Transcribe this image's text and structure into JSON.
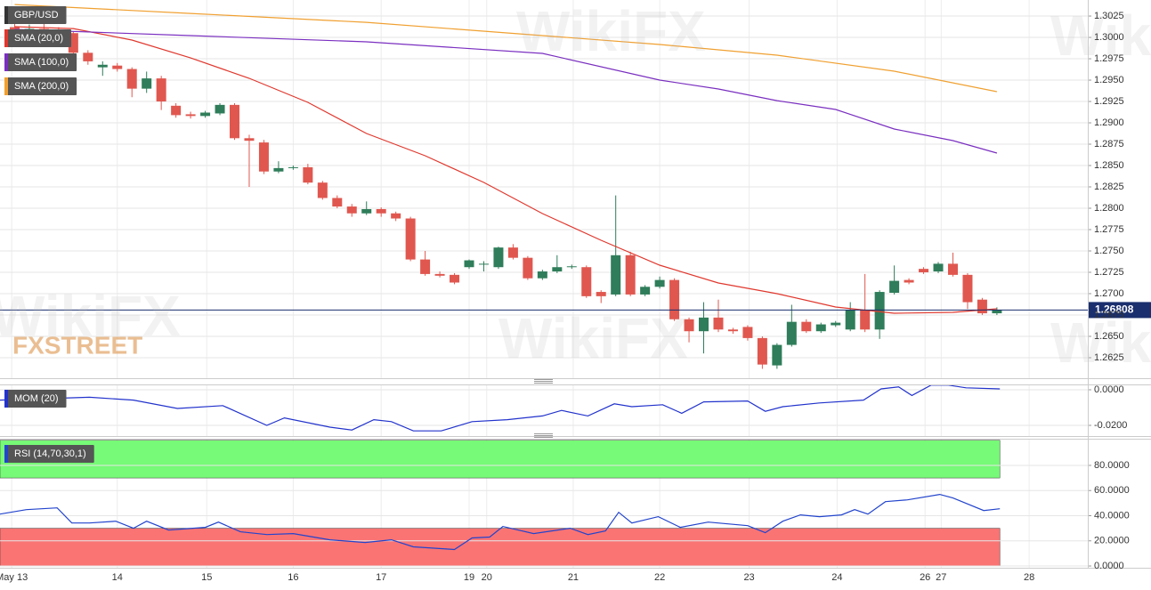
{
  "watermark": "WikiFX",
  "logo": "FXSTREET",
  "chart_data": [
    {
      "type": "candlestick",
      "title": "GBP/USD",
      "x": [
        0,
        1,
        2,
        3,
        4,
        5,
        6,
        7,
        8,
        9,
        10,
        11,
        12,
        13,
        14,
        15,
        16,
        17,
        18,
        19,
        20,
        21,
        22,
        23,
        24,
        25,
        26,
        27,
        28,
        29,
        30,
        31,
        32,
        33,
        34,
        35,
        36,
        37,
        38,
        39,
        40,
        41,
        42,
        43,
        44,
        45,
        46,
        47,
        48,
        49,
        50,
        51,
        52,
        53,
        54,
        55,
        56,
        57,
        58,
        59,
        60,
        61,
        62,
        63,
        64,
        65,
        66,
        67
      ],
      "open": [
        1.3012,
        1.3005,
        1.301,
        1.3008,
        1.3005,
        1.2982,
        1.2965,
        1.2967,
        1.2963,
        1.294,
        1.2952,
        1.292,
        1.291,
        1.2908,
        1.2911,
        1.2921,
        1.2882,
        1.2877,
        1.2843,
        1.2847,
        1.2848,
        1.283,
        1.2812,
        1.2802,
        1.2794,
        1.2799,
        1.2794,
        1.2788,
        1.274,
        1.2723,
        1.2722,
        1.2731,
        1.2734,
        1.2731,
        1.2754,
        1.2742,
        1.2718,
        1.2726,
        1.2731,
        1.2731,
        1.2702,
        1.2699,
        1.2745,
        1.2699,
        1.2708,
        1.2716,
        1.267,
        1.2656,
        1.2672,
        1.2658,
        1.2661,
        1.2648,
        1.2616,
        1.264,
        1.2667,
        1.2656,
        1.2663,
        1.2658,
        1.2681,
        1.2658,
        1.2701,
        1.2716,
        1.2729,
        1.2726,
        1.2735,
        1.2722,
        1.2693,
        1.2677
      ],
      "high": [
        1.3018,
        1.3015,
        1.302,
        1.3012,
        1.3007,
        1.2985,
        1.2972,
        1.297,
        1.2965,
        1.296,
        1.2955,
        1.2923,
        1.2913,
        1.2914,
        1.2923,
        1.2923,
        1.2886,
        1.288,
        1.2855,
        1.285,
        1.2852,
        1.2832,
        1.2815,
        1.2805,
        1.2808,
        1.2801,
        1.2796,
        1.279,
        1.275,
        1.2726,
        1.2724,
        1.274,
        1.2738,
        1.2755,
        1.2758,
        1.2744,
        1.2728,
        1.2745,
        1.2734,
        1.2733,
        1.2704,
        1.2815,
        1.2749,
        1.271,
        1.272,
        1.2718,
        1.2672,
        1.269,
        1.2693,
        1.266,
        1.2663,
        1.265,
        1.2642,
        1.2687,
        1.267,
        1.2666,
        1.2668,
        1.269,
        1.2723,
        1.2704,
        1.2733,
        1.2718,
        1.2731,
        1.2737,
        1.2748,
        1.2724,
        1.2695,
        1.2684
      ],
      "low": [
        1.3,
        1.2998,
        1.3002,
        1.2995,
        1.2975,
        1.2968,
        1.2955,
        1.296,
        1.293,
        1.2935,
        1.2915,
        1.2906,
        1.2905,
        1.2906,
        1.2909,
        1.288,
        1.2825,
        1.284,
        1.2841,
        1.2845,
        1.2828,
        1.281,
        1.28,
        1.279,
        1.2792,
        1.279,
        1.2785,
        1.2738,
        1.2721,
        1.2719,
        1.2711,
        1.2729,
        1.2726,
        1.2729,
        1.274,
        1.2716,
        1.2716,
        1.2724,
        1.2729,
        1.2695,
        1.2689,
        1.2697,
        1.2697,
        1.2697,
        1.2706,
        1.2668,
        1.2643,
        1.263,
        1.2655,
        1.2653,
        1.2645,
        1.2612,
        1.2612,
        1.2638,
        1.2654,
        1.2654,
        1.2661,
        1.2656,
        1.2655,
        1.2647,
        1.2699,
        1.2711,
        1.2723,
        1.2724,
        1.272,
        1.2682,
        1.2675,
        1.2675
      ],
      "close": [
        1.3005,
        1.301,
        1.3008,
        1.3005,
        1.2982,
        1.2972,
        1.2968,
        1.2963,
        1.294,
        1.2952,
        1.2925,
        1.2909,
        1.2908,
        1.2912,
        1.2921,
        1.2882,
        1.2879,
        1.2843,
        1.2847,
        1.2848,
        1.283,
        1.2812,
        1.2802,
        1.2794,
        1.2799,
        1.2794,
        1.2788,
        1.274,
        1.2723,
        1.2721,
        1.2713,
        1.2739,
        1.2735,
        1.2754,
        1.2742,
        1.2718,
        1.2726,
        1.2731,
        1.2732,
        1.2697,
        1.2697,
        1.2745,
        1.2699,
        1.2708,
        1.2716,
        1.267,
        1.2656,
        1.2672,
        1.2658,
        1.2656,
        1.2648,
        1.2617,
        1.264,
        1.2667,
        1.2656,
        1.2664,
        1.2666,
        1.2681,
        1.2658,
        1.2702,
        1.2715,
        1.2713,
        1.2725,
        1.2735,
        1.2722,
        1.269,
        1.2677,
        1.2681
      ],
      "up_color": "#2f7d5a",
      "down_color": "#e0574f",
      "series": [
        {
          "name": "SMA (20,0)",
          "color": "#e0382e",
          "x": [
            0,
            4,
            8,
            12,
            16,
            20,
            24,
            28,
            32,
            36,
            40,
            44,
            48,
            52,
            56,
            60,
            64,
            67
          ],
          "values": [
            1.30125,
            1.30104,
            1.29969,
            1.2976,
            1.29521,
            1.2924,
            1.28875,
            1.28615,
            1.28302,
            1.27938,
            1.27625,
            1.27333,
            1.27125,
            1.27,
            1.26844,
            1.26771,
            1.26781,
            1.26823
          ]
        },
        {
          "name": "SMA (100,0)",
          "color": "#7a2fc0",
          "x": [
            0,
            12,
            24,
            36,
            44,
            48,
            52,
            56,
            60,
            64,
            67
          ],
          "values": [
            1.30094,
            1.30021,
            1.29948,
            1.29813,
            1.295,
            1.29396,
            1.2926,
            1.29156,
            1.28927,
            1.28792,
            1.28646
          ]
        },
        {
          "name": "SMA (200,0)",
          "color": "#f0a030",
          "x": [
            0,
            12,
            24,
            36,
            44,
            52,
            60,
            67
          ],
          "values": [
            1.30385,
            1.30281,
            1.30177,
            1.30021,
            1.29917,
            1.29792,
            1.29604,
            1.29365
          ]
        }
      ],
      "last_price": 1.26808,
      "last_price_color": "#1a2f6e",
      "xlim": [
        -1,
        73.2
      ],
      "xticks": [
        {
          "value": -0.2,
          "label": "May 13"
        },
        {
          "value": 7,
          "label": "14"
        },
        {
          "value": 13.1,
          "label": "15"
        },
        {
          "value": 19,
          "label": "16"
        },
        {
          "value": 25,
          "label": "17"
        },
        {
          "value": 31,
          "label": "19"
        },
        {
          "value": 32.2,
          "label": "20"
        },
        {
          "value": 38.1,
          "label": "21"
        },
        {
          "value": 44,
          "label": "22"
        },
        {
          "value": 50.1,
          "label": "23"
        },
        {
          "value": 56.1,
          "label": "24"
        },
        {
          "value": 62.1,
          "label": "26"
        },
        {
          "value": 63.2,
          "label": "27"
        },
        {
          "value": 69.2,
          "label": "28"
        }
      ],
      "ylim": [
        1.2601,
        1.30438
      ],
      "yticks": [
        1.2625,
        {
          "value": 1.265,
          "label": "1.2650"
        },
        1.2675,
        {
          "value": 1.27,
          "label": "1.2700"
        },
        1.2725,
        {
          "value": 1.275,
          "label": "1.2750"
        },
        1.2775,
        {
          "value": 1.28,
          "label": "1.2800"
        },
        1.2825,
        {
          "value": 1.285,
          "label": "1.2850"
        },
        1.2875,
        {
          "value": 1.29,
          "label": "1.2900"
        },
        1.2925,
        {
          "value": 1.295,
          "label": "1.2950"
        },
        1.2975,
        {
          "value": 1.3,
          "label": "1.3000"
        },
        1.3025
      ],
      "grid": true
    },
    {
      "type": "line",
      "series": [
        {
          "name": "MOM (20)",
          "color": "#2233cc",
          "x": [
            -1.0,
            5.1,
            8.1,
            11.1,
            14.2,
            17.2,
            18.4,
            21.5,
            23.0,
            24.5,
            25.7,
            27.2,
            29.1,
            31.2,
            33.6,
            36.0,
            37.3,
            39.1,
            40.9,
            42.1,
            44.2,
            45.5,
            47.0,
            50.0,
            51.2,
            52.4,
            54.9,
            57.9,
            59.1,
            60.3,
            61.2,
            62.5,
            63.7,
            64.9,
            67.2
          ],
          "values": [
            -0.0058,
            -0.0042,
            -0.0058,
            -0.0105,
            -0.0089,
            -0.02,
            -0.0158,
            -0.021,
            -0.0226,
            -0.0168,
            -0.0179,
            -0.0231,
            -0.0231,
            -0.0179,
            -0.0168,
            -0.0147,
            -0.0116,
            -0.0147,
            -0.0079,
            -0.0095,
            -0.0084,
            -0.0132,
            -0.0068,
            -0.0063,
            -0.0121,
            -0.0095,
            -0.0074,
            -0.0058,
            0.0005,
            0.0016,
            -0.0032,
            0.0026,
            0.0026,
            0.0011,
            0.0005
          ]
        }
      ],
      "ylim": [
        -0.026,
        0.003
      ],
      "yticks": [
        {
          "value": 0,
          "label": "0.0000"
        },
        {
          "value": -0.02,
          "label": "-0.0200"
        }
      ],
      "grid": true
    },
    {
      "type": "line",
      "series": [
        {
          "name": "RSI (14,70,30,1)",
          "color": "#2244cc",
          "x": [
            -1.0,
            0.8,
            2.9,
            3.9,
            5.1,
            6.9,
            8.1,
            9.0,
            10.5,
            13.0,
            13.9,
            15.4,
            17.2,
            19.0,
            21.5,
            23.9,
            25.7,
            27.2,
            30.0,
            31.2,
            32.4,
            33.3,
            35.4,
            37.9,
            39.1,
            40.3,
            41.2,
            42.1,
            43.9,
            45.4,
            47.3,
            50.0,
            51.2,
            52.4,
            53.6,
            54.9,
            56.4,
            57.3,
            58.2,
            59.4,
            60.9,
            63.1,
            64.0,
            66.1,
            67.2
          ],
          "values": [
            41.3,
            44.8,
            46.2,
            34.2,
            34.2,
            35.6,
            30,
            35.6,
            28.6,
            30.7,
            34.9,
            27.2,
            25,
            25.8,
            20.8,
            18.7,
            20.8,
            15.2,
            13.1,
            22.3,
            23,
            31.4,
            25.8,
            30,
            25,
            27.9,
            42.7,
            34.2,
            39.2,
            30.7,
            34.9,
            32.1,
            26.5,
            35.6,
            40.6,
            39.2,
            40.6,
            44.8,
            41.3,
            51.2,
            52.6,
            56.9,
            54.1,
            44.1,
            45.5
          ]
        }
      ],
      "bands": [
        {
          "from": 70,
          "to": 100,
          "color": "#77fa77"
        },
        {
          "from": 0,
          "to": 30,
          "color": "#fa7474"
        }
      ],
      "ylim": [
        -1.4,
        101.2
      ],
      "yticks": [
        {
          "value": 0,
          "label": "0.0000"
        },
        {
          "value": 20,
          "label": "20.0000"
        },
        {
          "value": 40,
          "label": "40.0000"
        },
        {
          "value": 60,
          "label": "60.0000"
        },
        {
          "value": 80,
          "label": "80.0000"
        }
      ],
      "grid": true
    }
  ]
}
